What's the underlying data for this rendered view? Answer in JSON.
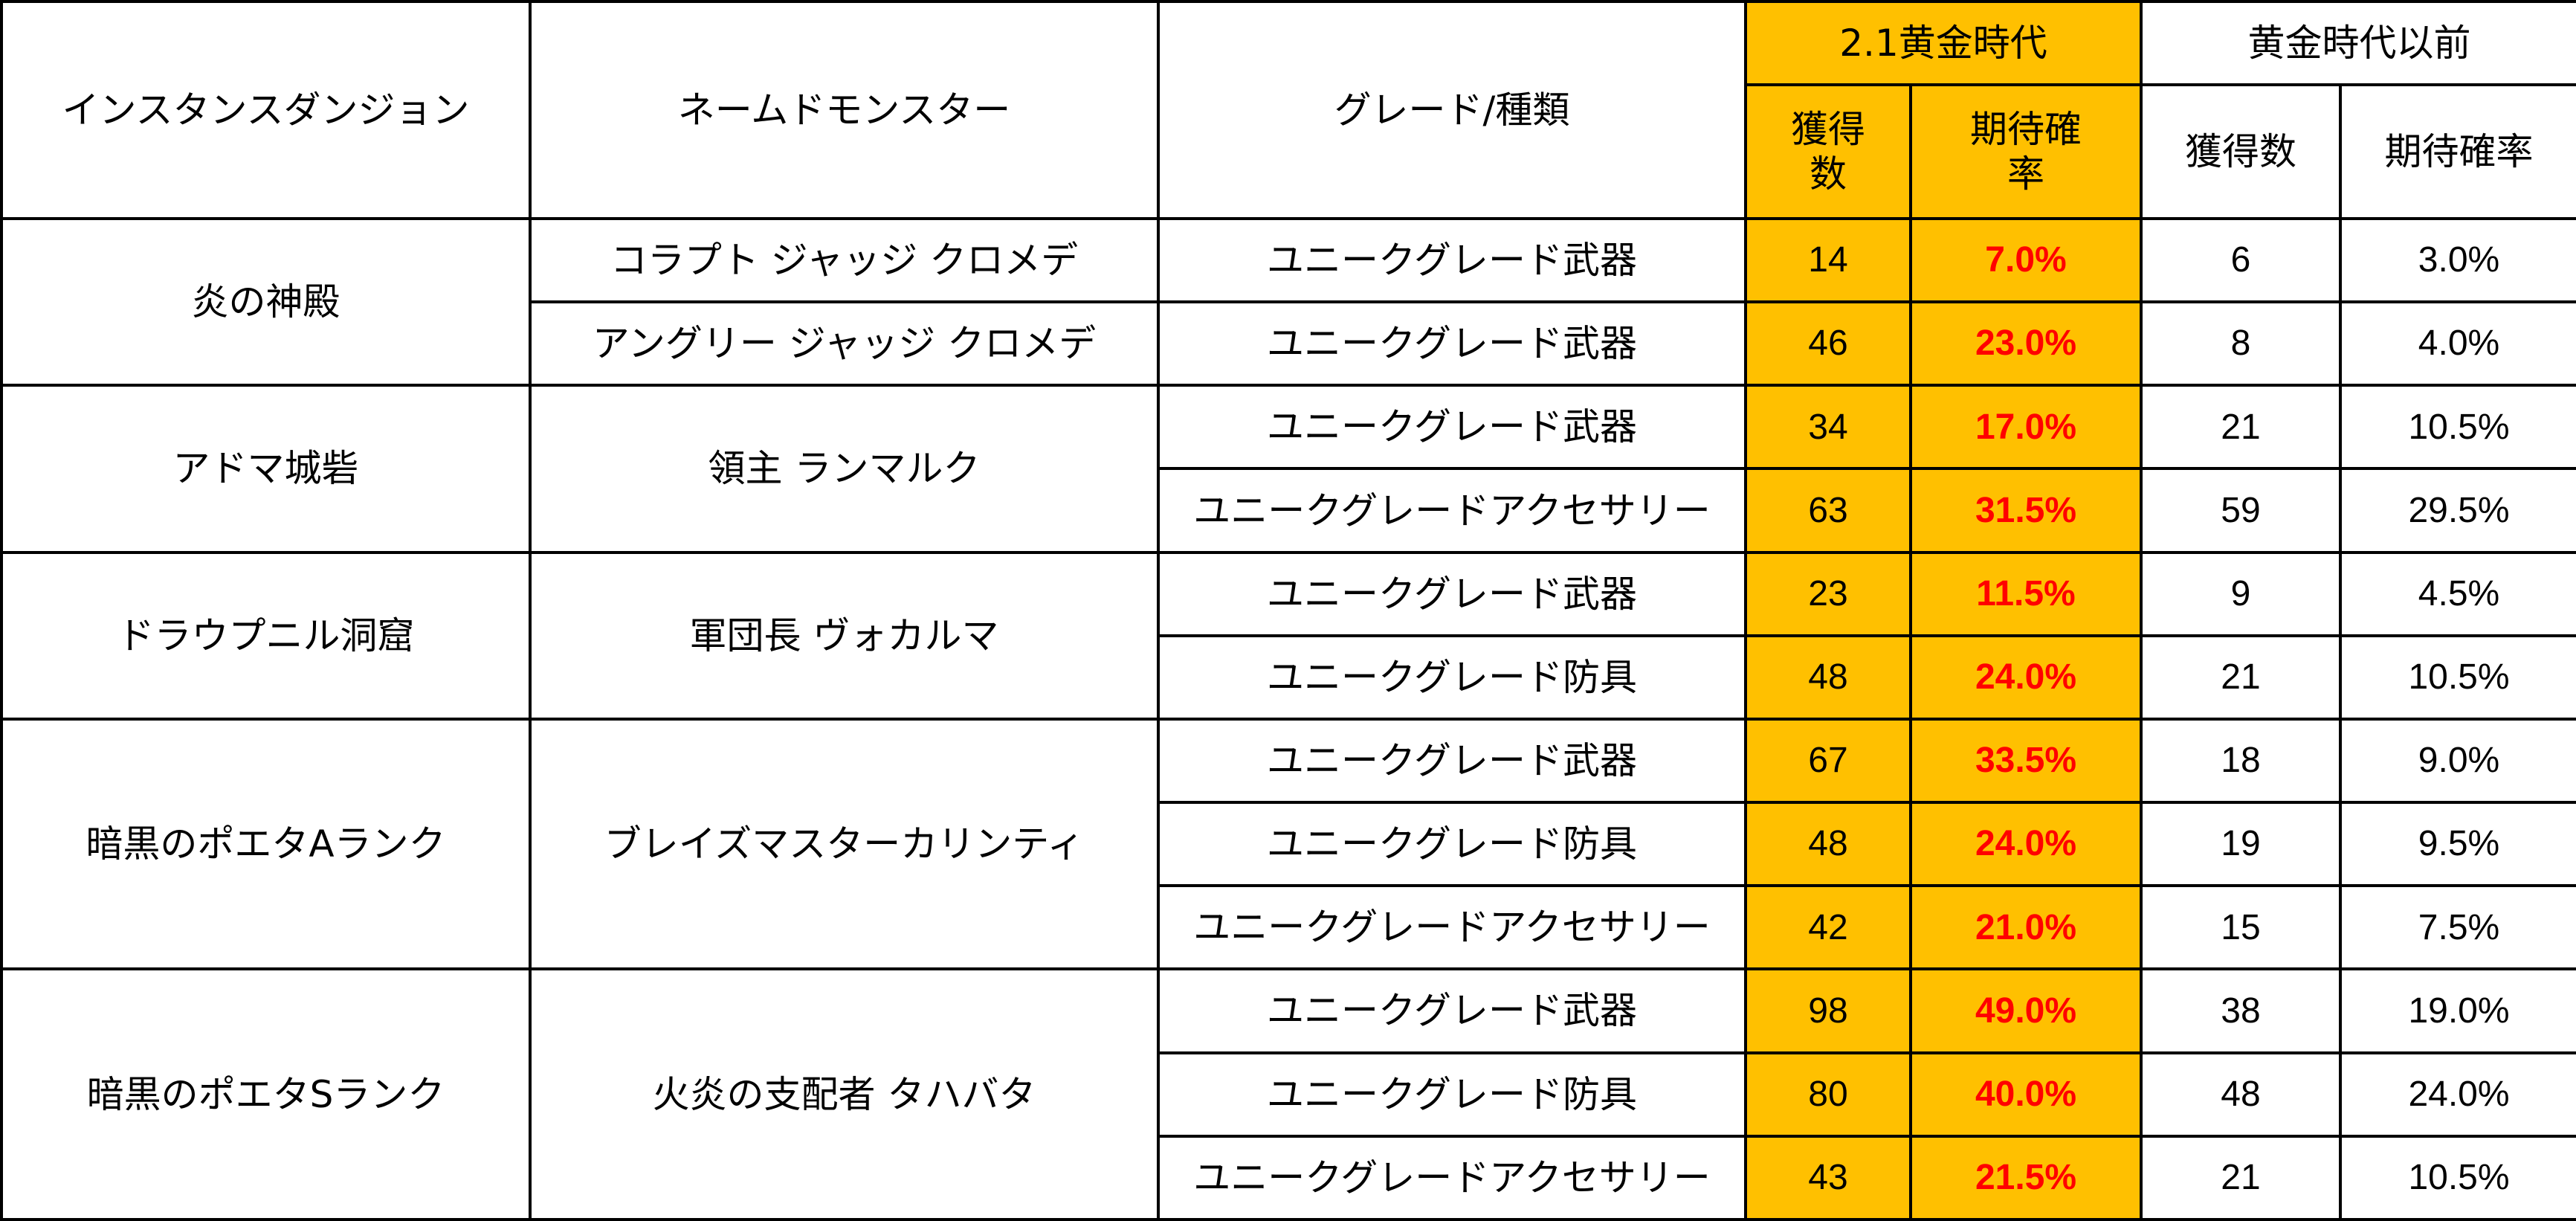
{
  "table": {
    "headers": {
      "dungeon": "インスタンスダンジョン",
      "monster": "ネームドモンスター",
      "grade": "グレード/種類",
      "golden_age": "2.1黄金時代",
      "pre_golden": "黄金時代以前",
      "count_wrapped": "獲得数",
      "rate_wrapped": "期待確率",
      "count": "獲得数",
      "rate": "期待確率"
    },
    "colors": {
      "highlight_bg": "#ffc000",
      "rate_text": "#ff0000",
      "border": "#000000"
    },
    "groups": [
      {
        "dungeon": "炎の神殿",
        "rows": [
          {
            "monster": "コラプト ジャッジ クロメデ",
            "grade": "ユニークグレード武器",
            "ga_count": "14",
            "ga_rate": "7.0%",
            "pre_count": "6",
            "pre_rate": "3.0%"
          },
          {
            "monster": "アングリー ジャッジ クロメデ",
            "grade": "ユニークグレード武器",
            "ga_count": "46",
            "ga_rate": "23.0%",
            "pre_count": "8",
            "pre_rate": "4.0%"
          }
        ]
      },
      {
        "dungeon": "アドマ城砦",
        "monster": "領主 ランマルク",
        "rows": [
          {
            "grade": "ユニークグレード武器",
            "ga_count": "34",
            "ga_rate": "17.0%",
            "pre_count": "21",
            "pre_rate": "10.5%"
          },
          {
            "grade": "ユニークグレードアクセサリー",
            "ga_count": "63",
            "ga_rate": "31.5%",
            "pre_count": "59",
            "pre_rate": "29.5%"
          }
        ]
      },
      {
        "dungeon": "ドラウプニル洞窟",
        "monster": "軍団長 ヴォカルマ",
        "rows": [
          {
            "grade": "ユニークグレード武器",
            "ga_count": "23",
            "ga_rate": "11.5%",
            "pre_count": "9",
            "pre_rate": "4.5%"
          },
          {
            "grade": "ユニークグレード防具",
            "ga_count": "48",
            "ga_rate": "24.0%",
            "pre_count": "21",
            "pre_rate": "10.5%"
          }
        ]
      },
      {
        "dungeon": "暗黒のポエタAランク",
        "monster": "ブレイズマスターカリンティ",
        "rows": [
          {
            "grade": "ユニークグレード武器",
            "ga_count": "67",
            "ga_rate": "33.5%",
            "pre_count": "18",
            "pre_rate": "9.0%"
          },
          {
            "grade": "ユニークグレード防具",
            "ga_count": "48",
            "ga_rate": "24.0%",
            "pre_count": "19",
            "pre_rate": "9.5%"
          },
          {
            "grade": "ユニークグレードアクセサリー",
            "ga_count": "42",
            "ga_rate": "21.0%",
            "pre_count": "15",
            "pre_rate": "7.5%"
          }
        ]
      },
      {
        "dungeon": "暗黒のポエタSランク",
        "monster": "火炎の支配者 タハバタ",
        "rows": [
          {
            "grade": "ユニークグレード武器",
            "ga_count": "98",
            "ga_rate": "49.0%",
            "pre_count": "38",
            "pre_rate": "19.0%"
          },
          {
            "grade": "ユニークグレード防具",
            "ga_count": "80",
            "ga_rate": "40.0%",
            "pre_count": "48",
            "pre_rate": "24.0%"
          },
          {
            "grade": "ユニークグレードアクセサリー",
            "ga_count": "43",
            "ga_rate": "21.5%",
            "pre_count": "21",
            "pre_rate": "10.5%"
          }
        ]
      }
    ]
  }
}
